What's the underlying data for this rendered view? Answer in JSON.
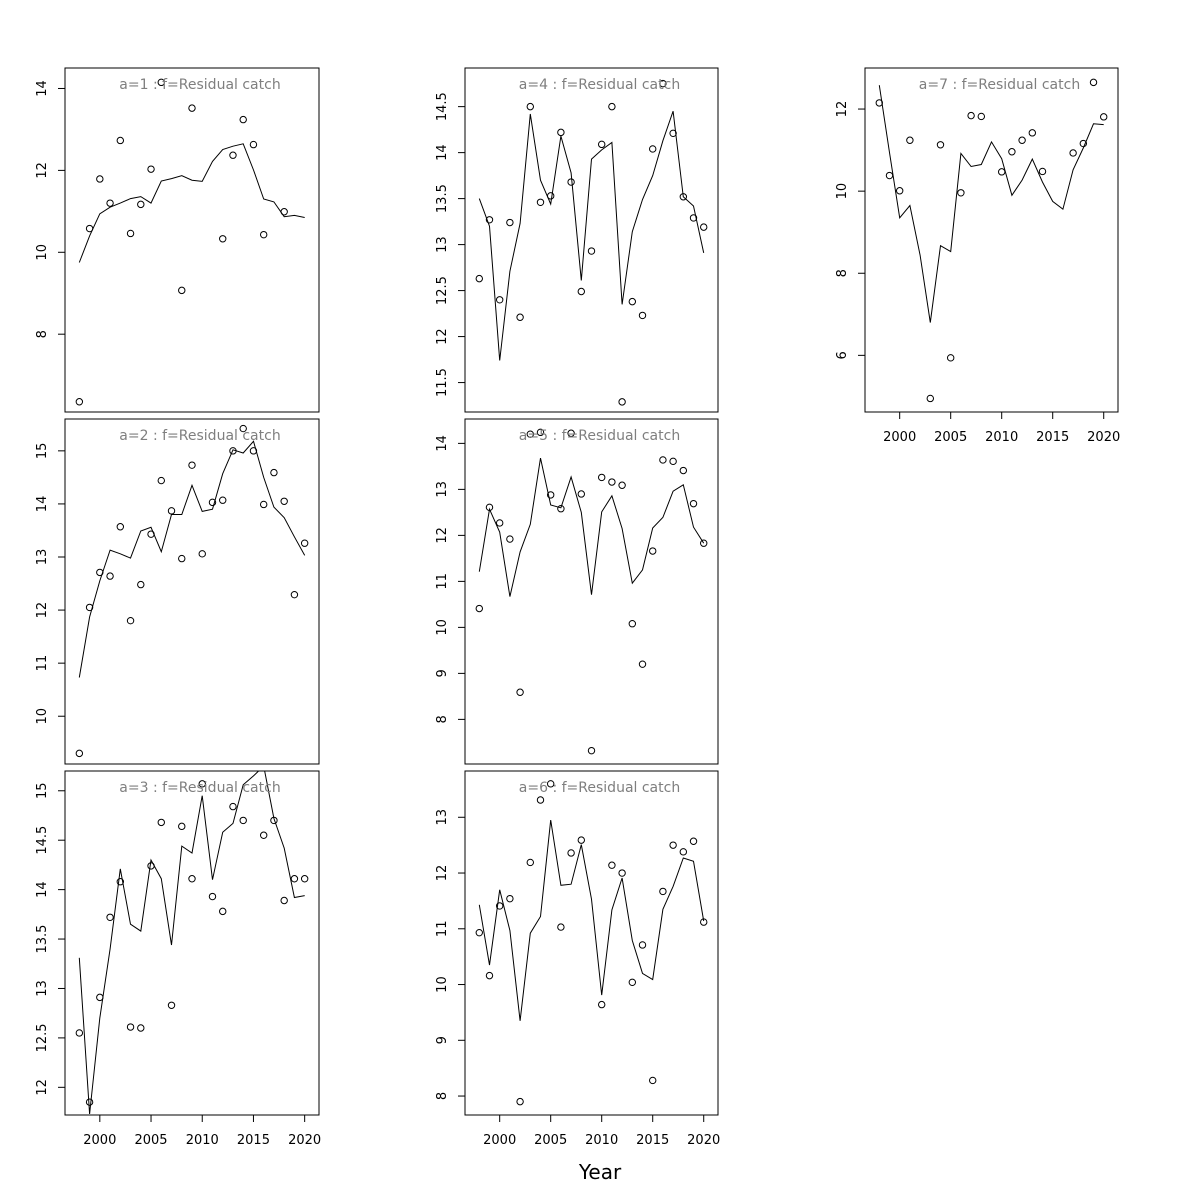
{
  "chart_data": [
    {
      "type": "scatter",
      "title": "a=1  :  f=Residual catch",
      "x": [
        1998,
        1999,
        2000,
        2001,
        2002,
        2003,
        2004,
        2005,
        2006,
        2007,
        2008,
        2009,
        2010,
        2011,
        2012,
        2013,
        2014,
        2015,
        2016,
        2017,
        2018,
        2019,
        2020
      ],
      "series": [
        {
          "role": "observed",
          "values": [
            6.35,
            10.58,
            11.79,
            11.2,
            12.73,
            10.46,
            11.17,
            12.03,
            14.15,
            null,
            9.07,
            13.52,
            null,
            null,
            10.33,
            12.37,
            13.24,
            12.63,
            10.43,
            null,
            10.99,
            null,
            null
          ]
        },
        {
          "role": "fitted",
          "values": [
            9.75,
            10.4,
            10.94,
            11.1,
            11.2,
            11.31,
            11.36,
            11.2,
            11.74,
            11.8,
            11.87,
            11.76,
            11.73,
            12.22,
            12.51,
            12.59,
            12.65,
            12.01,
            11.3,
            11.23,
            10.87,
            10.9,
            10.85
          ]
        }
      ],
      "yticks": [
        8,
        10,
        12,
        14
      ],
      "ylim": [
        6.1,
        14.5
      ],
      "xlim": [
        1996.6,
        2021.4
      ],
      "xticks_shown": false
    },
    {
      "type": "scatter",
      "title": "a=2  :  f=Residual catch",
      "x": [
        1998,
        1999,
        2000,
        2001,
        2002,
        2003,
        2004,
        2005,
        2006,
        2007,
        2008,
        2009,
        2010,
        2011,
        2012,
        2013,
        2014,
        2015,
        2016,
        2017,
        2018,
        2019,
        2020
      ],
      "series": [
        {
          "role": "observed",
          "values": [
            9.3,
            12.05,
            12.71,
            12.64,
            13.57,
            11.8,
            12.48,
            13.43,
            14.44,
            13.87,
            12.97,
            14.73,
            13.06,
            14.03,
            14.07,
            15.0,
            15.42,
            15.0,
            13.99,
            14.59,
            14.05,
            12.29,
            13.26
          ]
        },
        {
          "role": "fitted",
          "values": [
            10.73,
            11.87,
            12.55,
            13.13,
            13.06,
            12.98,
            13.49,
            13.56,
            13.1,
            13.8,
            13.8,
            14.35,
            13.86,
            13.9,
            14.57,
            15.02,
            14.96,
            15.18,
            14.5,
            13.94,
            13.74,
            13.38,
            13.03
          ]
        }
      ],
      "yticks": [
        10,
        11,
        12,
        13,
        14,
        15
      ],
      "ylim": [
        9.1,
        15.6
      ],
      "xlim": [
        1996.6,
        2021.4
      ],
      "xticks_shown": false
    },
    {
      "type": "scatter",
      "title": "a=3  :  f=Residual catch",
      "x": [
        1998,
        1999,
        2000,
        2001,
        2002,
        2003,
        2004,
        2005,
        2006,
        2007,
        2008,
        2009,
        2010,
        2011,
        2012,
        2013,
        2014,
        2015,
        2016,
        2017,
        2018,
        2019,
        2020
      ],
      "series": [
        {
          "role": "observed",
          "values": [
            12.55,
            11.85,
            12.91,
            13.72,
            14.08,
            12.61,
            12.6,
            14.24,
            14.68,
            12.83,
            14.64,
            14.11,
            15.07,
            13.93,
            13.78,
            14.84,
            14.7,
            null,
            14.55,
            14.7,
            13.89,
            14.11,
            14.11
          ]
        },
        {
          "role": "fitted",
          "values": [
            13.31,
            11.73,
            12.7,
            13.4,
            14.21,
            13.65,
            13.58,
            14.3,
            14.11,
            13.44,
            14.44,
            14.37,
            14.95,
            14.1,
            14.58,
            14.67,
            15.06,
            15.15,
            15.25,
            14.72,
            14.42,
            13.92,
            13.94
          ]
        }
      ],
      "yticks": [
        12.0,
        12.5,
        13.0,
        13.5,
        14.0,
        14.5,
        15.0
      ],
      "ylim": [
        11.72,
        15.2
      ],
      "xlim": [
        1996.6,
        2021.4
      ],
      "xticks": [
        2000,
        2005,
        2010,
        2015,
        2020
      ]
    },
    {
      "type": "scatter",
      "title": "a=4  :  f=Residual catch",
      "x": [
        1998,
        1999,
        2000,
        2001,
        2002,
        2003,
        2004,
        2005,
        2006,
        2007,
        2008,
        2009,
        2010,
        2011,
        2012,
        2013,
        2014,
        2015,
        2016,
        2017,
        2018,
        2019,
        2020
      ],
      "series": [
        {
          "role": "observed",
          "values": [
            12.63,
            13.27,
            12.4,
            13.24,
            12.21,
            14.5,
            13.46,
            13.53,
            14.22,
            13.68,
            12.49,
            12.93,
            14.09,
            14.5,
            11.29,
            12.38,
            12.23,
            14.04,
            14.75,
            14.21,
            13.52,
            13.29,
            13.19
          ]
        },
        {
          "role": "fitted",
          "values": [
            13.5,
            13.2,
            11.74,
            12.71,
            13.23,
            14.42,
            13.7,
            13.44,
            14.18,
            13.78,
            12.61,
            13.93,
            14.03,
            14.11,
            12.35,
            13.14,
            13.49,
            13.75,
            14.13,
            14.45,
            13.52,
            13.42,
            12.91
          ]
        }
      ],
      "yticks": [
        11.5,
        12.0,
        12.5,
        13.0,
        13.5,
        14.0,
        14.5
      ],
      "ylim": [
        11.18,
        14.92
      ],
      "xlim": [
        1996.6,
        2021.4
      ],
      "xticks_shown": false
    },
    {
      "type": "scatter",
      "title": "a=5  :  f=Residual catch",
      "x": [
        1998,
        1999,
        2000,
        2001,
        2002,
        2003,
        2004,
        2005,
        2006,
        2007,
        2008,
        2009,
        2010,
        2011,
        2012,
        2013,
        2014,
        2015,
        2016,
        2017,
        2018,
        2019,
        2020
      ],
      "series": [
        {
          "role": "observed",
          "values": [
            10.41,
            12.61,
            12.27,
            11.92,
            8.59,
            14.2,
            14.24,
            12.88,
            12.58,
            14.22,
            12.9,
            7.32,
            13.26,
            13.16,
            13.09,
            10.08,
            9.2,
            11.66,
            13.64,
            13.61,
            13.41,
            12.69,
            11.83
          ]
        },
        {
          "role": "fitted",
          "values": [
            11.21,
            12.57,
            12.07,
            10.67,
            11.64,
            12.24,
            13.68,
            12.66,
            12.6,
            13.27,
            12.5,
            10.71,
            12.51,
            12.86,
            12.15,
            10.96,
            11.25,
            12.16,
            12.39,
            12.96,
            13.1,
            12.18,
            11.83
          ]
        }
      ],
      "yticks": [
        8,
        9,
        10,
        11,
        12,
        13,
        14
      ],
      "ylim": [
        7.03,
        14.53
      ],
      "xlim": [
        1996.6,
        2021.4
      ],
      "xticks_shown": false
    },
    {
      "type": "scatter",
      "title": "a=6  :  f=Residual catch",
      "x": [
        1998,
        1999,
        2000,
        2001,
        2002,
        2003,
        2004,
        2005,
        2006,
        2007,
        2008,
        2009,
        2010,
        2011,
        2012,
        2013,
        2014,
        2015,
        2016,
        2017,
        2018,
        2019,
        2020
      ],
      "series": [
        {
          "role": "observed",
          "values": [
            10.93,
            10.16,
            11.41,
            11.54,
            7.9,
            12.19,
            13.31,
            13.6,
            11.03,
            12.36,
            12.59,
            null,
            9.64,
            12.14,
            12,
            10.04,
            10.71,
            8.28,
            11.67,
            12.5,
            12.38,
            12.57,
            11.12
          ]
        },
        {
          "role": "fitted",
          "values": [
            11.43,
            10.35,
            11.7,
            10.97,
            9.35,
            10.92,
            11.22,
            12.95,
            11.78,
            11.8,
            12.51,
            11.53,
            9.81,
            11.34,
            11.91,
            10.79,
            10.2,
            10.09,
            11.35,
            11.76,
            12.27,
            12.21,
            11.14
          ]
        }
      ],
      "yticks": [
        8,
        9,
        10,
        11,
        12,
        13
      ],
      "ylim": [
        7.66,
        13.83
      ],
      "xlim": [
        1996.6,
        2021.4
      ],
      "xticks": [
        2000,
        2005,
        2010,
        2015,
        2020
      ]
    },
    {
      "type": "scatter",
      "title": "a=7  :  f=Residual catch",
      "x": [
        1998,
        1999,
        2000,
        2001,
        2002,
        2003,
        2004,
        2005,
        2006,
        2007,
        2008,
        2009,
        2010,
        2011,
        2012,
        2013,
        2014,
        2015,
        2016,
        2017,
        2018,
        2019,
        2020
      ],
      "series": [
        {
          "role": "observed",
          "values": [
            12.15,
            10.38,
            10.01,
            11.24,
            null,
            4.95,
            11.13,
            5.94,
            9.96,
            11.84,
            11.82,
            null,
            10.47,
            10.96,
            11.24,
            11.42,
            10.48,
            null,
            null,
            10.93,
            11.16,
            12.65,
            11.81
          ]
        },
        {
          "role": "fitted",
          "values": [
            12.58,
            10.94,
            9.35,
            9.65,
            8.44,
            6.8,
            8.67,
            8.53,
            10.92,
            10.6,
            10.65,
            11.2,
            10.79,
            9.9,
            10.27,
            10.78,
            10.22,
            9.75,
            9.56,
            10.52,
            11.05,
            11.64,
            11.62
          ]
        }
      ],
      "yticks": [
        6,
        8,
        10,
        12
      ],
      "ylim": [
        4.62,
        13.0
      ],
      "xlim": [
        1996.6,
        2021.4
      ],
      "xticks": [
        2000,
        2005,
        2010,
        2015,
        2020
      ]
    }
  ],
  "xlabel": "Year"
}
